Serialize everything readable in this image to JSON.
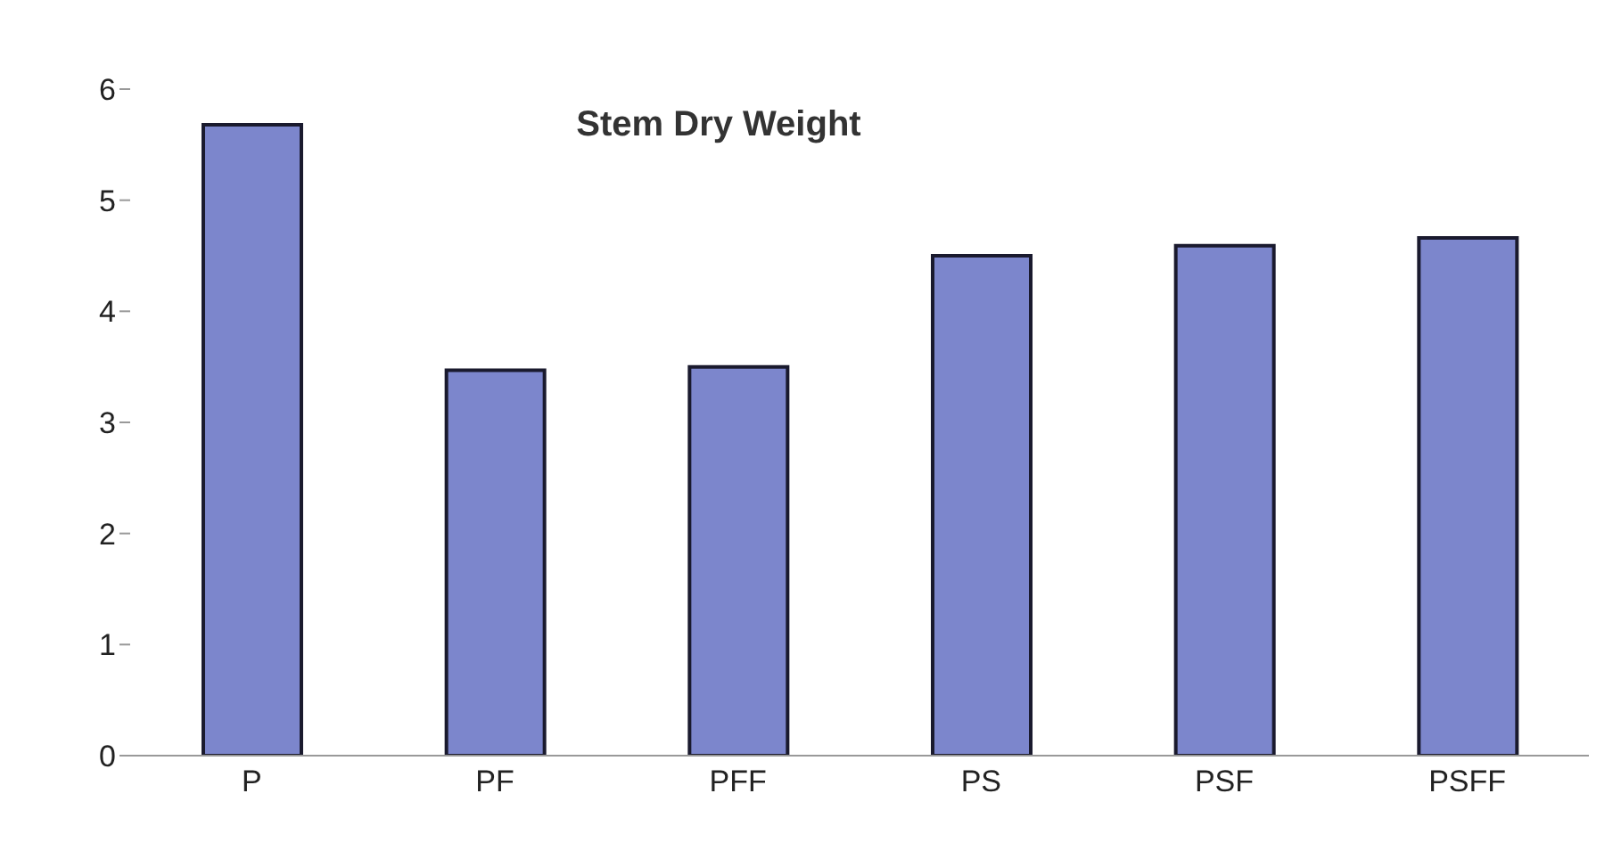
{
  "chart_data": {
    "type": "bar",
    "title": "Stem Dry Weight",
    "categories": [
      "P",
      "PF",
      "PFF",
      "PS",
      "PSF",
      "PSFF"
    ],
    "values": [
      5.68,
      3.47,
      3.5,
      4.5,
      4.59,
      4.66
    ],
    "color": "#7c86cc",
    "ylim": [
      0,
      6
    ],
    "yticks": [
      0,
      1,
      2,
      3,
      4,
      5,
      6
    ]
  }
}
